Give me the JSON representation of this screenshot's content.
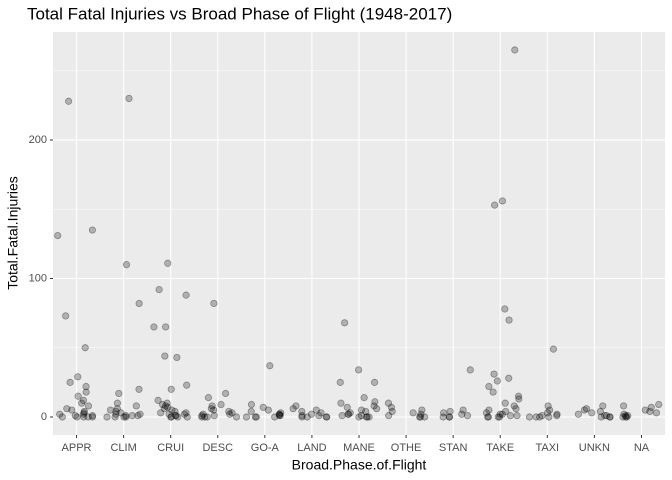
{
  "chart_data": {
    "type": "strip",
    "title": "Total Fatal Injuries vs Broad Phase of Flight (1948-2017)",
    "x_label": "Broad.Phase.of.Flight",
    "y_label": "Total.Fatal.Injuries",
    "categories": [
      "APPR",
      "CLIM",
      "CRUI",
      "DESC",
      "GO-A",
      "LAND",
      "MANE",
      "OTHE",
      "STAN",
      "TAKE",
      "TAXI",
      "UNKN",
      "NA"
    ],
    "values": [
      [
        131,
        135,
        228,
        73,
        50,
        29,
        25,
        22,
        18,
        15,
        12,
        10,
        8,
        6,
        5,
        4,
        3,
        2,
        2,
        1,
        1,
        0,
        0,
        0,
        0,
        0
      ],
      [
        230,
        110,
        82,
        20,
        17,
        10,
        8,
        6,
        5,
        4,
        3,
        2,
        2,
        1,
        1,
        1,
        0,
        0,
        0,
        0
      ],
      [
        111,
        92,
        88,
        65,
        65,
        44,
        43,
        23,
        20,
        12,
        10,
        9,
        8,
        7,
        6,
        5,
        4,
        3,
        3,
        2,
        2,
        1,
        1,
        0,
        0,
        0,
        0
      ],
      [
        82,
        17,
        14,
        9,
        8,
        6,
        5,
        4,
        3,
        2,
        2,
        1,
        1,
        0,
        0,
        0,
        0
      ],
      [
        37,
        9,
        7,
        5,
        4,
        3,
        2,
        2,
        1,
        1,
        0,
        0,
        0,
        0
      ],
      [
        8,
        6,
        5,
        4,
        3,
        2,
        1,
        1,
        0,
        0,
        0,
        0
      ],
      [
        68,
        34,
        25,
        25,
        14,
        11,
        10,
        8,
        7,
        6,
        5,
        4,
        3,
        2,
        2,
        1,
        1,
        0,
        0,
        0,
        0
      ],
      [
        10,
        7,
        5,
        4,
        3,
        2,
        1,
        0,
        0,
        0
      ],
      [
        34,
        5,
        4,
        3,
        2,
        1,
        0,
        0,
        0
      ],
      [
        265,
        156,
        153,
        78,
        70,
        31,
        28,
        26,
        22,
        18,
        15,
        13,
        10,
        8,
        6,
        5,
        4,
        3,
        2,
        2,
        1,
        1,
        0,
        0,
        0,
        0
      ],
      [
        49,
        8,
        5,
        3,
        2,
        1,
        1,
        0,
        0,
        0,
        0
      ],
      [
        8,
        6,
        5,
        4,
        3,
        2,
        1,
        1,
        0,
        0,
        0
      ],
      [
        9,
        8,
        7,
        5,
        4,
        3,
        2,
        1,
        1,
        0,
        0,
        0
      ]
    ],
    "color": "#000000",
    "ylim": [
      -13,
      278
    ],
    "yticks": [
      0,
      100,
      200
    ],
    "y_minor_ticks": [
      50,
      150,
      250
    ],
    "grid": true
  }
}
